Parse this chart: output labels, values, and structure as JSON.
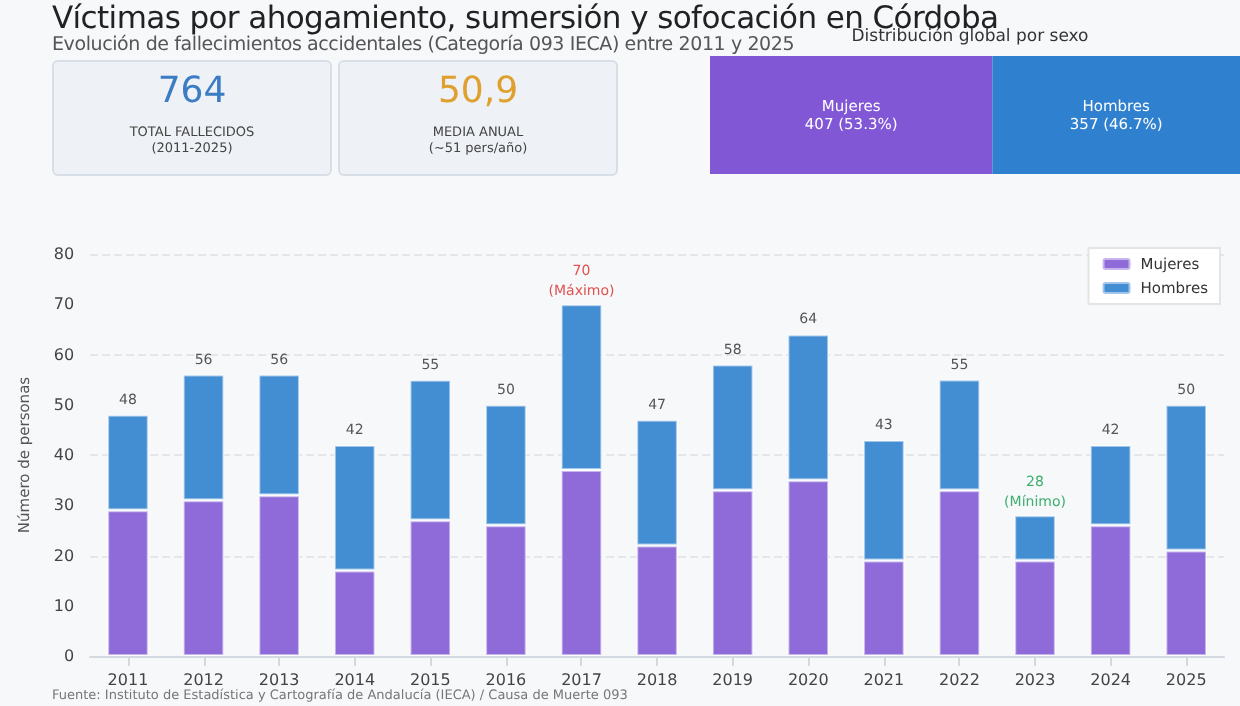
{
  "chart_data": [
    {
      "type": "other",
      "title": "Víctimas por ahogamiento, sumersión y sofocación en Córdoba",
      "subtitle": "Evolución de fallecimientos accidentales (Categoría 093 IECA) entre 2011 y 2025",
      "annotations": [
        "764",
        "TOTAL FALLECIDOS",
        "(2011-2025)",
        "50,9",
        "MEDIA ANUAL",
        "(~51 pers/año)"
      ]
    },
    {
      "type": "bar",
      "orientation": "horizontal",
      "stacked": true,
      "title": "Distribución global por sexo",
      "categories": [
        null
      ],
      "xlim": [
        0,
        764
      ],
      "tick_labels": false,
      "series": [
        {
          "name": "Mujeres",
          "color": "#8257d6",
          "values": [
            407
          ],
          "value_labels": [
            "407 (53.3%)"
          ]
        },
        {
          "name": "Hombres",
          "color": "#2f80cf",
          "values": [
            357
          ],
          "value_labels": [
            "357 (46.7%)"
          ]
        }
      ]
    },
    {
      "type": "bar",
      "stacked": true,
      "ylabel": "Número de personas",
      "categories": [
        "2011",
        "2012",
        "2013",
        "2014",
        "2015",
        "2016",
        "2017",
        "2018",
        "2019",
        "2020",
        "2021",
        "2022",
        "2023",
        "2024",
        "2025"
      ],
      "ylim": [
        0,
        80
      ],
      "yticks": [
        0,
        10,
        20,
        30,
        40,
        50,
        60,
        70,
        80
      ],
      "grid": "y",
      "legend": "top right",
      "series": [
        {
          "name": "Mujeres",
          "color": "#8e6bd9",
          "values": [
            29,
            31,
            32,
            17,
            27,
            26,
            37,
            22,
            33,
            35,
            19,
            33,
            19,
            26,
            21
          ]
        },
        {
          "name": "Hombres",
          "color": "#438dd3",
          "values": [
            19,
            25,
            24,
            25,
            28,
            24,
            33,
            25,
            25,
            29,
            24,
            22,
            9,
            16,
            29
          ]
        }
      ],
      "totals": [
        "48",
        "56",
        "56",
        "42",
        "55",
        "50",
        "70",
        "47",
        "58",
        "64",
        "43",
        "55",
        "28",
        "42",
        "50"
      ],
      "annotations": [
        "Fuente: Instituto de Estadística y Cartografía de Andalucía (IECA) / Causa de Muerte 093",
        {
          "text": "(Máximo)",
          "x": "2017",
          "y": 70
        },
        {
          "text": "(Mínimo)",
          "x": "2023",
          "y": 28
        }
      ]
    }
  ]
}
